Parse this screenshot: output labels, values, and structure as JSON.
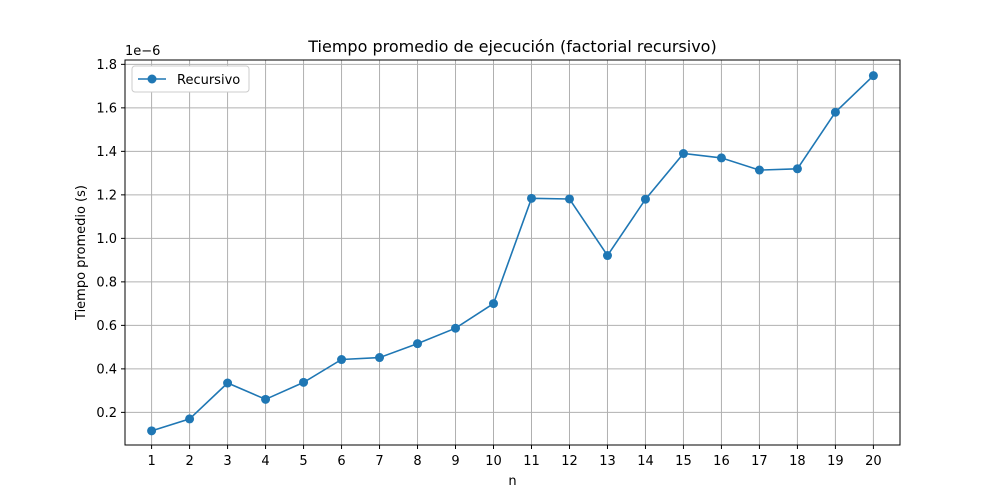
{
  "chart_data": {
    "type": "line",
    "title": "Tiempo promedio de ejecución (factorial recursivo)",
    "xlabel": "n",
    "ylabel": "Tiempo promedio (s)",
    "y_offset_label": "1e−6",
    "xlim": [
      0.3,
      20.7
    ],
    "ylim": [
      0.05,
      1.82
    ],
    "x_ticks": [
      1,
      2,
      3,
      4,
      5,
      6,
      7,
      8,
      9,
      10,
      11,
      12,
      13,
      14,
      15,
      16,
      17,
      18,
      19,
      20
    ],
    "y_ticks": [
      0.2,
      0.4,
      0.6,
      0.8,
      1.0,
      1.2,
      1.4,
      1.6,
      1.8
    ],
    "y_tick_labels": [
      "0.2",
      "0.4",
      "0.6",
      "0.8",
      "1.0",
      "1.2",
      "1.4",
      "1.6",
      "1.8"
    ],
    "grid": true,
    "legend_position": "top-left",
    "series": [
      {
        "name": "Recursivo",
        "color": "#1f77b4",
        "marker": "circle",
        "x": [
          1,
          2,
          3,
          4,
          5,
          6,
          7,
          8,
          9,
          10,
          11,
          12,
          13,
          14,
          15,
          16,
          17,
          18,
          19,
          20
        ],
        "y": [
          0.115,
          0.17,
          0.335,
          0.26,
          0.338,
          0.443,
          0.452,
          0.516,
          0.587,
          0.7,
          1.184,
          1.181,
          0.921,
          1.18,
          1.39,
          1.37,
          1.314,
          1.32,
          1.58,
          1.748
        ]
      }
    ]
  }
}
